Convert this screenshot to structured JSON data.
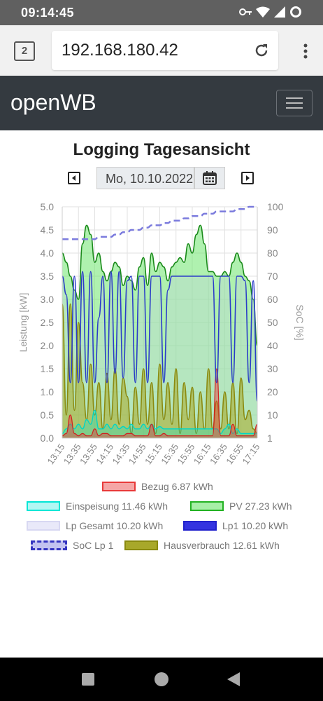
{
  "status_bar": {
    "time": "09:14:45",
    "icons": [
      "key-icon",
      "wifi-icon",
      "signal-icon",
      "circle-icon"
    ]
  },
  "browser": {
    "tab_count": "2",
    "url": "192.168.180.42"
  },
  "navbar": {
    "brand": "openWB"
  },
  "page": {
    "title": "Logging Tagesansicht",
    "date_value": "Mo, 10.10.2022"
  },
  "colors": {
    "navbar_bg": "#343a40",
    "bezug": "#e83a3a",
    "einspeisung": "#00e6d6",
    "pv": "#22b222",
    "lp_gesamt": "#c8c8f0",
    "lp1": "#2222cc",
    "soc": "#7b7bdd",
    "hausverbrauch": "#9a9a1a"
  },
  "chart_data": {
    "type": "area",
    "xlabel": "",
    "ylabel": "Leistung [kW]",
    "y2label": "SoC [%]",
    "ylim": [
      0,
      5
    ],
    "y2lim": [
      0,
      100
    ],
    "y_ticks": [
      "0.0",
      "0.5",
      "1.0",
      "1.5",
      "2.0",
      "2.5",
      "3.0",
      "3.5",
      "4.0",
      "4.5",
      "5.0"
    ],
    "y2_ticks": [
      "1",
      "10",
      "20",
      "30",
      "40",
      "50",
      "60",
      "70",
      "80",
      "90",
      "100"
    ],
    "x_ticks": [
      "13:15",
      "13:35",
      "13:55",
      "14:15",
      "14:35",
      "14:55",
      "15:15",
      "15:35",
      "15:55",
      "16:15",
      "16:35",
      "16:55",
      "17:15"
    ],
    "x": [
      0,
      5,
      10,
      15,
      20,
      25,
      30,
      35,
      40,
      45,
      50,
      55,
      60,
      65,
      70,
      75,
      80,
      85,
      90,
      95,
      100,
      105,
      110,
      115,
      120,
      125,
      130,
      135,
      140,
      145,
      150,
      155,
      160,
      165,
      170,
      175,
      180,
      185,
      190,
      195,
      200,
      205,
      210,
      215,
      220,
      225,
      230,
      235,
      240
    ],
    "series": [
      {
        "name": "Bezug",
        "total": "6.87 kWh",
        "values": [
          0.05,
          0.1,
          0.5,
          0.1,
          0.05,
          0.1,
          0.05,
          0.05,
          0.2,
          0.05,
          0.1,
          0.1,
          0.05,
          0.05,
          0.05,
          0.05,
          0.1,
          0.1,
          0.05,
          0.05,
          0.05,
          0.05,
          0.3,
          0.05,
          0.05,
          0.1,
          0.05,
          0.05,
          0.05,
          0.05,
          0.05,
          0.05,
          0.05,
          0.05,
          0.05,
          0.05,
          0.05,
          0.05,
          1.5,
          0.05,
          0.05,
          0.05,
          0.3,
          0.05,
          0.05,
          0.05,
          0.05,
          0.05,
          0.3
        ]
      },
      {
        "name": "Einspeisung",
        "total": "11.46 kWh",
        "values": [
          0.1,
          0.2,
          0.3,
          0.2,
          0.3,
          0.2,
          0.4,
          0.3,
          0.6,
          0.2,
          0.2,
          0.3,
          0.2,
          0.3,
          0.2,
          0.25,
          0.2,
          0.3,
          0.2,
          0.2,
          0.3,
          0.2,
          0.3,
          0.2,
          0.25,
          0.2,
          0.2,
          0.2,
          0.2,
          0.2,
          0.2,
          0.2,
          0.2,
          0.2,
          0.2,
          0.2,
          0.2,
          0.2,
          0.2,
          0.1,
          0.2,
          0.3,
          0.1,
          0.2,
          0.1,
          0.1,
          0.1,
          0.1,
          0.1
        ]
      },
      {
        "name": "PV",
        "total": "27.23 kWh",
        "values": [
          4.0,
          3.8,
          3.5,
          3.2,
          3.0,
          4.2,
          4.6,
          4.4,
          3.8,
          4.0,
          3.6,
          3.4,
          3.6,
          3.8,
          3.7,
          3.3,
          3.5,
          3.4,
          3.2,
          3.7,
          3.9,
          3.3,
          4.0,
          3.6,
          3.8,
          3.7,
          3.4,
          3.7,
          3.8,
          3.9,
          3.8,
          4.2,
          4.0,
          4.4,
          4.6,
          4.2,
          3.6,
          3.6,
          3.5,
          3.5,
          3.6,
          3.5,
          3.8,
          4.0,
          3.8,
          3.5,
          3.4,
          3.0,
          2.0
        ]
      },
      {
        "name": "Lp Gesamt",
        "total": "10.20 kWh",
        "values": [
          3.5,
          3.1,
          1.2,
          3.5,
          1.2,
          3.6,
          1.2,
          3.6,
          1.2,
          2.6,
          3.5,
          1.2,
          3.6,
          1.4,
          3.6,
          1.3,
          3.4,
          3.5,
          1.2,
          3.5,
          3.5,
          1.2,
          3.5,
          3.5,
          3.5,
          1.2,
          3.2,
          3.5,
          3.5,
          3.5,
          3.5,
          3.5,
          3.5,
          3.5,
          3.5,
          3.5,
          3.5,
          3.5,
          1.2,
          3.5,
          3.5,
          3.5,
          1.2,
          3.5,
          3.5,
          3.4,
          1.2,
          3.4,
          0.8
        ]
      },
      {
        "name": "Lp1",
        "total": "10.20 kWh",
        "values": [
          3.5,
          3.1,
          1.2,
          3.5,
          1.2,
          3.6,
          1.2,
          3.6,
          1.2,
          2.6,
          3.5,
          1.2,
          3.6,
          1.4,
          3.6,
          1.3,
          3.4,
          3.5,
          1.2,
          3.5,
          3.5,
          1.2,
          3.5,
          3.5,
          3.5,
          1.2,
          3.2,
          3.5,
          3.5,
          3.5,
          3.5,
          3.5,
          3.5,
          3.5,
          3.5,
          3.5,
          3.5,
          3.5,
          1.2,
          3.5,
          3.5,
          3.5,
          1.2,
          3.5,
          3.5,
          3.4,
          1.2,
          3.4,
          0.8
        ]
      },
      {
        "name": "SoC Lp 1",
        "axis": "right",
        "values": [
          86,
          86,
          86,
          86,
          86,
          86,
          86,
          86,
          86,
          87,
          87,
          87,
          87,
          88,
          88,
          89,
          89,
          90,
          90,
          90,
          91,
          91,
          92,
          92,
          92,
          93,
          93,
          94,
          94,
          94,
          95,
          95,
          96,
          96,
          96,
          97,
          97,
          97,
          98,
          98,
          98,
          98,
          98,
          99,
          99,
          99,
          100,
          100,
          100
        ]
      },
      {
        "name": "Hausverbrauch",
        "total": "12.61 kWh",
        "values": [
          2.9,
          0.5,
          2.9,
          0.6,
          2.5,
          1.2,
          0.4,
          1.6,
          0.5,
          1.2,
          0.2,
          1.4,
          0.4,
          1.5,
          0.3,
          1.3,
          0.9,
          0.1,
          1.1,
          0.3,
          1.5,
          0.3,
          1.2,
          0.1,
          1.6,
          0.4,
          1.2,
          0.3,
          1.5,
          0.1,
          1.2,
          0.4,
          1.1,
          0.1,
          1.0,
          0.2,
          1.5,
          0.2,
          0.8,
          0.2,
          1.0,
          0.2,
          1.2,
          0.1,
          1.3,
          0.4,
          0.6,
          0.2,
          0.1
        ]
      }
    ],
    "legend": "bottom",
    "grid": true
  },
  "legend": {
    "bezug": "Bezug 6.87 kWh",
    "einspeisung": "Einspeisung 11.46 kWh",
    "pv": "PV 27.23 kWh",
    "lp_gesamt": "Lp Gesamt 10.20 kWh",
    "lp1": "Lp1 10.20 kWh",
    "soc": "SoC Lp 1",
    "hausverbrauch": "Hausverbrauch 12.61 kWh"
  },
  "system_nav": {
    "icons": [
      "recents-icon",
      "home-icon",
      "back-icon"
    ]
  }
}
